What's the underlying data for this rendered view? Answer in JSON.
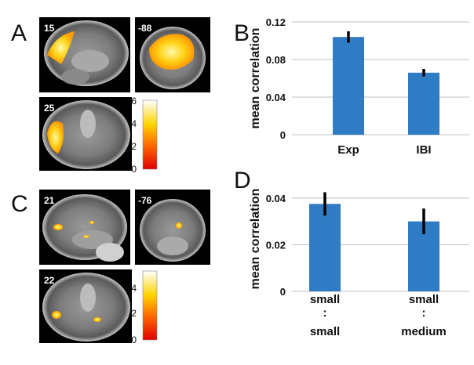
{
  "panels": {
    "A": {
      "letter": "A",
      "slices": [
        "15",
        "-88",
        "25"
      ],
      "colorbar_ticks": [
        "6",
        "4",
        "2",
        "0"
      ]
    },
    "C": {
      "letter": "C",
      "slices": [
        "21",
        "-76",
        "22"
      ],
      "colorbar_ticks": [
        "4",
        "2",
        "0"
      ]
    },
    "B": {
      "letter": "B"
    },
    "D": {
      "letter": "D"
    }
  },
  "colors": {
    "bar": "#2f7bc4",
    "errbar": "#000000",
    "axis": "#bfbfbf"
  },
  "chart_data": [
    {
      "panel": "B",
      "type": "bar",
      "categories": [
        "Exp",
        "IBI"
      ],
      "values": [
        0.104,
        0.066
      ],
      "errors": [
        0.006,
        0.004
      ],
      "ylabel": "mean correlation",
      "ylim": [
        0,
        0.12
      ],
      "yticks": [
        0,
        0.04,
        0.08,
        0.12
      ],
      "ytick_labels": [
        "0",
        "0.04",
        "0.08",
        "0.12"
      ]
    },
    {
      "panel": "D",
      "type": "bar",
      "categories": [
        [
          "small",
          ":",
          "small"
        ],
        [
          "small",
          ":",
          "medium"
        ]
      ],
      "values": [
        0.0375,
        0.03
      ],
      "errors": [
        0.005,
        0.0055
      ],
      "ylabel": "mean correlation",
      "ylim": [
        0,
        0.045
      ],
      "yticks": [
        0,
        0.02,
        0.04
      ],
      "ytick_labels": [
        "0",
        "0.02",
        "0.04"
      ]
    }
  ]
}
